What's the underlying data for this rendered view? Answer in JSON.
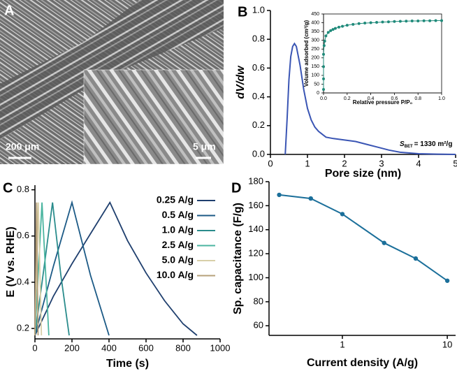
{
  "image_panel": {
    "label": "A",
    "scale_bars": [
      "200 μm",
      "5 μm"
    ]
  },
  "chart_data": [
    {
      "type": "line",
      "label": "B",
      "xlabel": "Pore size (nm)",
      "ylabel": "dV/dw",
      "annotation": {
        "symbol": "S",
        "subscript": "BET",
        "text": "= 1330 m²/g"
      },
      "color": "#3a55b4",
      "x": [
        0.4,
        0.45,
        0.5,
        0.55,
        0.6,
        0.65,
        0.7,
        0.8,
        0.9,
        1.0,
        1.1,
        1.2,
        1.3,
        1.4,
        1.5,
        1.7,
        2.0,
        2.3,
        2.6,
        2.9,
        3.2,
        3.5,
        4.0,
        4.5,
        5.0
      ],
      "values": [
        0,
        0.25,
        0.52,
        0.68,
        0.75,
        0.77,
        0.75,
        0.62,
        0.45,
        0.32,
        0.24,
        0.19,
        0.16,
        0.14,
        0.12,
        0.11,
        0.1,
        0.09,
        0.07,
        0.05,
        0.03,
        0.015,
        0.005,
        0.002,
        0
      ],
      "xlim": [
        0,
        5
      ],
      "ylim": [
        0,
        1
      ],
      "xticks": [
        0,
        1,
        2,
        3,
        4,
        5
      ],
      "yticks": [
        {
          "value": 0,
          "label": "0.0"
        },
        0.2,
        0.4,
        0.6,
        0.8,
        {
          "value": 1,
          "label": "1.0"
        }
      ]
    },
    {
      "type": "line",
      "xlabel": "Relative pressure P/P₀",
      "ylabel": "Volume adsorbed (cm³/g)",
      "color": "#1f8a7a",
      "markers": true,
      "x": [
        0,
        0,
        0,
        0,
        0.005,
        0.01,
        0.02,
        0.04,
        0.06,
        0.08,
        0.1,
        0.13,
        0.16,
        0.2,
        0.25,
        0.3,
        0.35,
        0.4,
        0.45,
        0.5,
        0.55,
        0.6,
        0.65,
        0.7,
        0.75,
        0.8,
        0.85,
        0.9,
        0.95,
        1.0
      ],
      "values": [
        20,
        80,
        150,
        220,
        270,
        295,
        325,
        345,
        355,
        362,
        368,
        375,
        380,
        386,
        391,
        395,
        398,
        400,
        402,
        404,
        405,
        407,
        408,
        409,
        410,
        410,
        411,
        411,
        412,
        412
      ],
      "xlim": [
        0,
        1
      ],
      "ylim": [
        0,
        450
      ],
      "xticks": [
        {
          "value": 0,
          "label": "0.0"
        },
        0.2,
        0.4,
        0.6,
        0.8,
        {
          "value": 1,
          "label": "1.0"
        }
      ],
      "yticks": [
        0,
        50,
        100,
        150,
        200,
        250,
        300,
        350,
        400,
        450
      ]
    },
    {
      "type": "line",
      "label": "C",
      "xlabel": "Time (s)",
      "ylabel": "E (V vs. RHE)",
      "legend": "upper right",
      "series": [
        {
          "name": "0.25 A/g",
          "color": "#1f3f6e",
          "x": [
            0,
            100,
            200,
            300,
            405,
            500,
            600,
            700,
            800,
            875
          ],
          "values": [
            0.17,
            0.34,
            0.48,
            0.61,
            0.745,
            0.58,
            0.44,
            0.32,
            0.22,
            0.17
          ]
        },
        {
          "name": "0.5 A/g",
          "color": "#1c5a86",
          "x": [
            0,
            100,
            200,
            300,
            400
          ],
          "values": [
            0.17,
            0.47,
            0.745,
            0.43,
            0.17
          ]
        },
        {
          "name": "1.0 A/g",
          "color": "#2a8c8c",
          "x": [
            0,
            50,
            95,
            140,
            185
          ],
          "values": [
            0.17,
            0.47,
            0.745,
            0.43,
            0.17
          ]
        },
        {
          "name": "2.5 A/g",
          "color": "#4bb5a0",
          "x": [
            0,
            38,
            75
          ],
          "values": [
            0.17,
            0.745,
            0.17
          ]
        },
        {
          "name": "5.0 A/g",
          "color": "#d8cfa8",
          "x": [
            0,
            18,
            35
          ],
          "values": [
            0.17,
            0.745,
            0.17
          ]
        },
        {
          "name": "10.0 A/g",
          "color": "#b6a07a",
          "x": [
            0,
            9,
            17
          ],
          "values": [
            0.17,
            0.745,
            0.17
          ]
        }
      ],
      "xlim": [
        0,
        1000
      ],
      "ylim": [
        0.155,
        0.82
      ],
      "xticks": [
        0,
        200,
        400,
        600,
        800,
        1000
      ],
      "yticks": [
        0.2,
        0.4,
        0.6,
        0.8
      ]
    },
    {
      "type": "line",
      "label": "D",
      "xlabel": "Current density (A/g)",
      "ylabel": "Sp. capacitance (F/g)",
      "log_x": true,
      "color": "#1b6f9a",
      "markers": true,
      "x": [
        0.25,
        0.5,
        1,
        2.5,
        5,
        10
      ],
      "values": [
        169,
        166,
        153,
        129,
        116,
        97.5
      ],
      "xlim": [
        0.2,
        12
      ],
      "ylim": [
        52,
        180
      ],
      "xticks": [
        1,
        10
      ],
      "yticks": [
        60,
        80,
        100,
        120,
        140,
        160,
        180
      ]
    }
  ]
}
